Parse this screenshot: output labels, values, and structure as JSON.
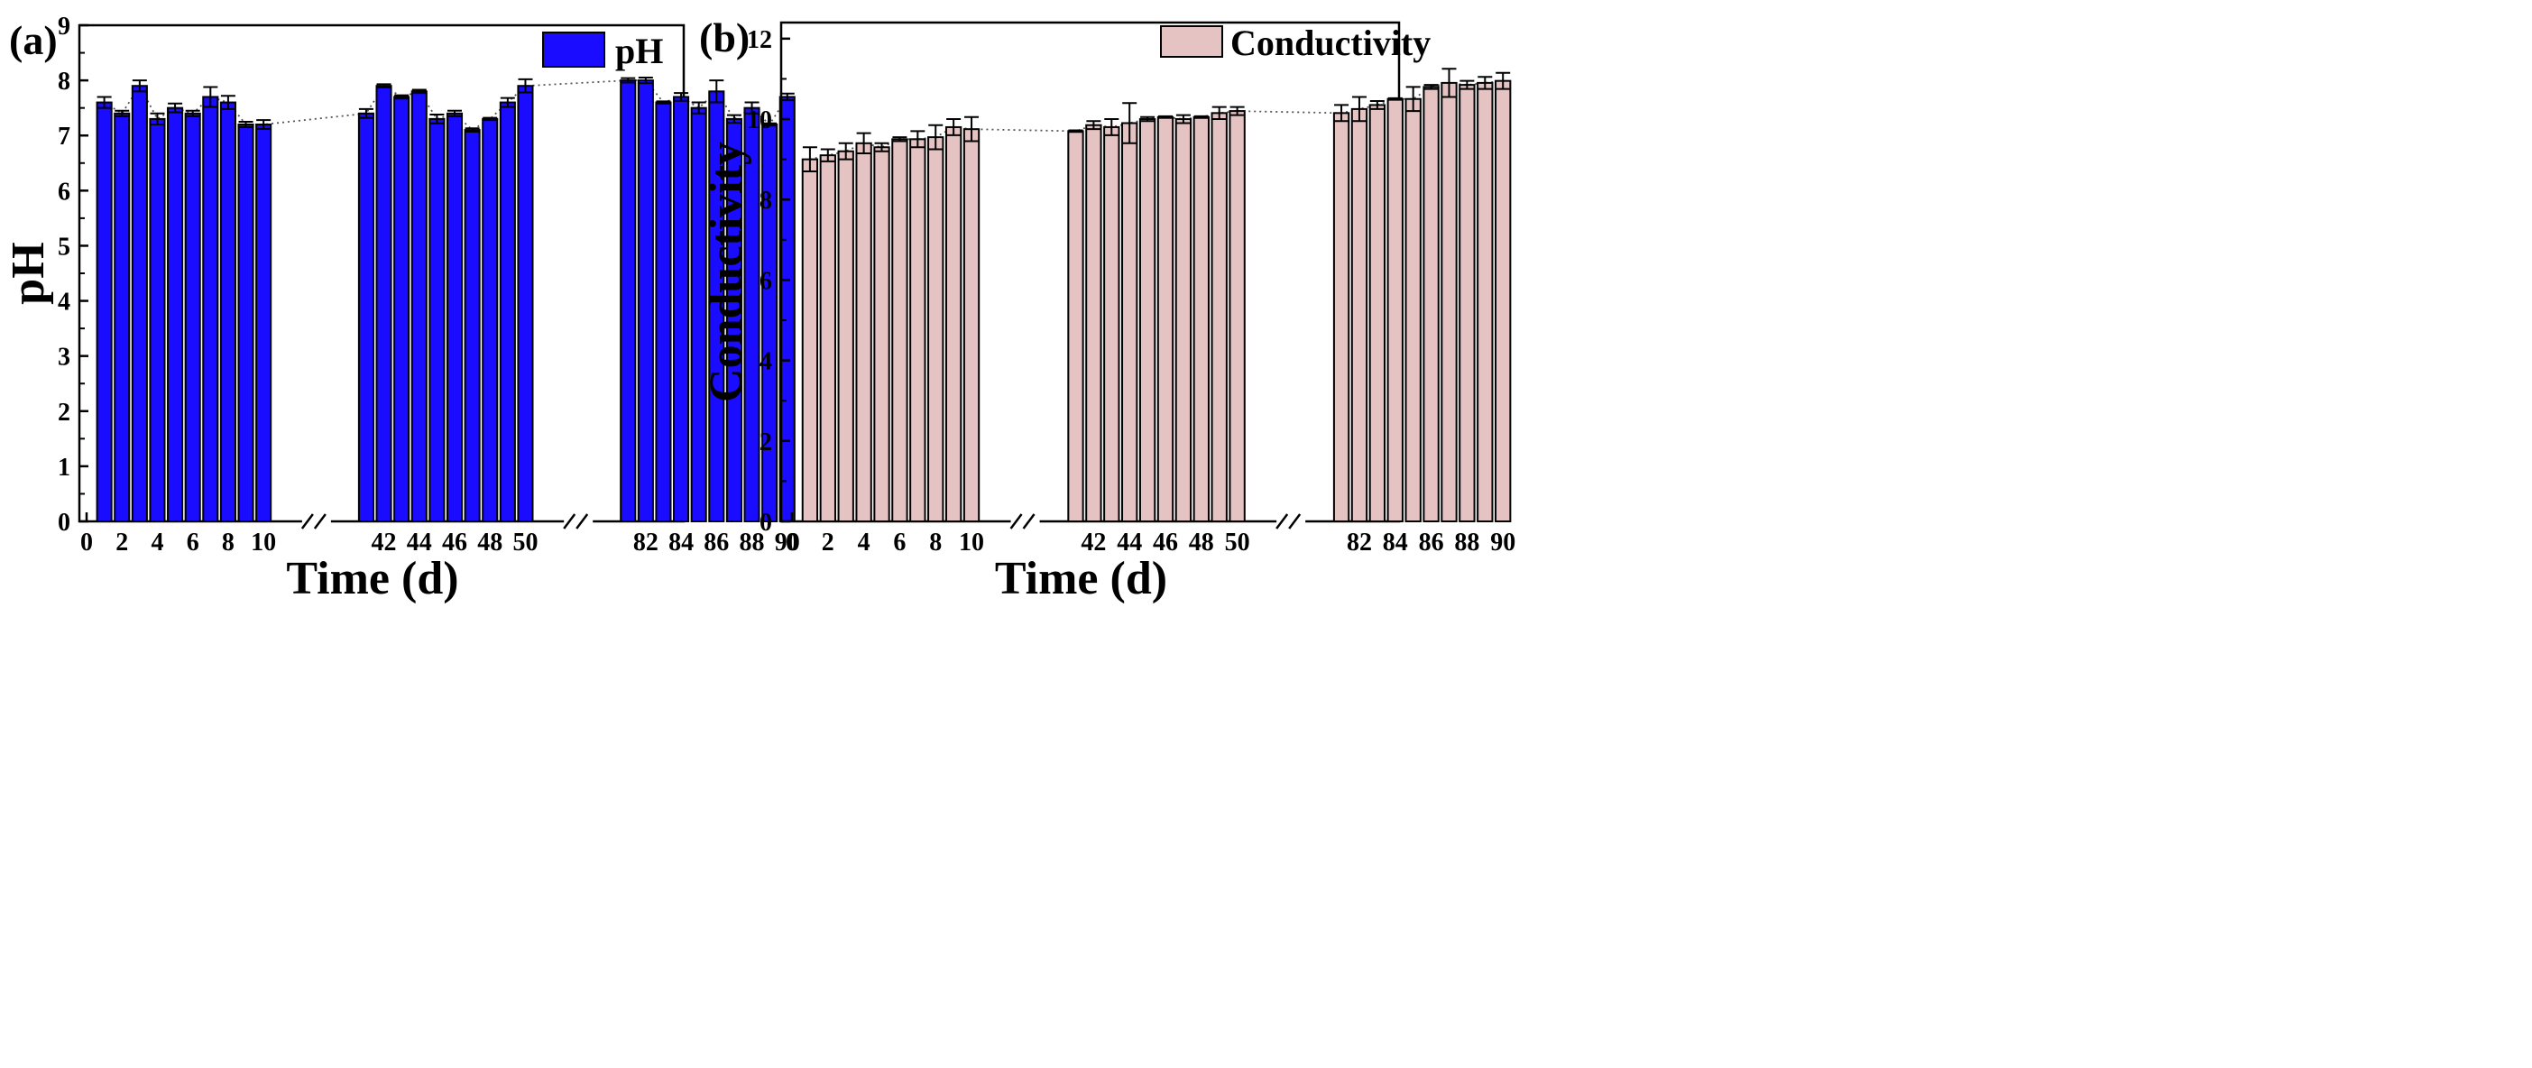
{
  "chart_data": [
    {
      "type": "bar",
      "panel_label": "(a)",
      "title": "",
      "xlabel": "Time (d)",
      "ylabel": "pH",
      "legend": [
        "pH"
      ],
      "legend_position": "top-right",
      "ylim": [
        0,
        9
      ],
      "yticks": [
        "0",
        "1",
        "2",
        "3",
        "4",
        "5",
        "6",
        "7",
        "8",
        "9"
      ],
      "xticks": [
        "0",
        "2",
        "4",
        "6",
        "8",
        "10",
        "42",
        "44",
        "46",
        "48",
        "50",
        "82",
        "84",
        "86",
        "88",
        "90"
      ],
      "axis_break": true,
      "color": "#1a0dff",
      "x": [
        1,
        2,
        3,
        4,
        5,
        6,
        7,
        8,
        9,
        10,
        41,
        42,
        43,
        44,
        45,
        46,
        47,
        48,
        49,
        50,
        81,
        82,
        83,
        84,
        85,
        86,
        87,
        88,
        89,
        90
      ],
      "values": [
        7.6,
        7.4,
        7.9,
        7.3,
        7.5,
        7.4,
        7.7,
        7.6,
        7.2,
        7.2,
        7.4,
        7.9,
        7.7,
        7.8,
        7.3,
        7.4,
        7.1,
        7.3,
        7.6,
        7.9,
        8.0,
        8.0,
        7.6,
        7.7,
        7.5,
        7.8,
        7.3,
        7.5,
        7.2,
        7.7
      ],
      "errors": [
        0.1,
        0.05,
        0.1,
        0.1,
        0.08,
        0.05,
        0.18,
        0.12,
        0.05,
        0.08,
        0.08,
        0.03,
        0.03,
        0.03,
        0.08,
        0.05,
        0.03,
        0.02,
        0.08,
        0.12,
        0.04,
        0.05,
        0.02,
        0.07,
        0.1,
        0.2,
        0.07,
        0.1,
        0.02,
        0.06
      ]
    },
    {
      "type": "bar",
      "panel_label": "(b)",
      "title": "",
      "xlabel": "Time (d)",
      "ylabel": "Conductivity",
      "legend": [
        "Conductivity"
      ],
      "legend_position": "top-right",
      "ylim": [
        0,
        12.4
      ],
      "yticks": [
        "0",
        "2",
        "4",
        "6",
        "8",
        "10",
        "12"
      ],
      "xticks": [
        "0",
        "2",
        "4",
        "6",
        "8",
        "10",
        "42",
        "44",
        "46",
        "48",
        "50",
        "82",
        "84",
        "86",
        "88",
        "90"
      ],
      "axis_break": true,
      "color": "#e6c3c3",
      "x": [
        1,
        2,
        3,
        4,
        5,
        6,
        7,
        8,
        9,
        10,
        41,
        42,
        43,
        44,
        45,
        46,
        47,
        48,
        49,
        50,
        81,
        82,
        83,
        84,
        85,
        86,
        87,
        88,
        89,
        90
      ],
      "values": [
        9.0,
        9.1,
        9.2,
        9.4,
        9.3,
        9.5,
        9.5,
        9.55,
        9.8,
        9.75,
        9.7,
        9.85,
        9.8,
        9.9,
        10.0,
        10.05,
        10.0,
        10.05,
        10.15,
        10.2,
        10.15,
        10.25,
        10.35,
        10.5,
        10.5,
        10.8,
        10.9,
        10.85,
        10.9,
        10.95
      ],
      "errors": [
        0.3,
        0.15,
        0.2,
        0.25,
        0.1,
        0.05,
        0.2,
        0.3,
        0.2,
        0.3,
        0.02,
        0.1,
        0.2,
        0.5,
        0.05,
        0.02,
        0.1,
        0.02,
        0.15,
        0.1,
        0.2,
        0.3,
        0.1,
        0.02,
        0.3,
        0.05,
        0.35,
        0.1,
        0.15,
        0.2
      ]
    }
  ]
}
